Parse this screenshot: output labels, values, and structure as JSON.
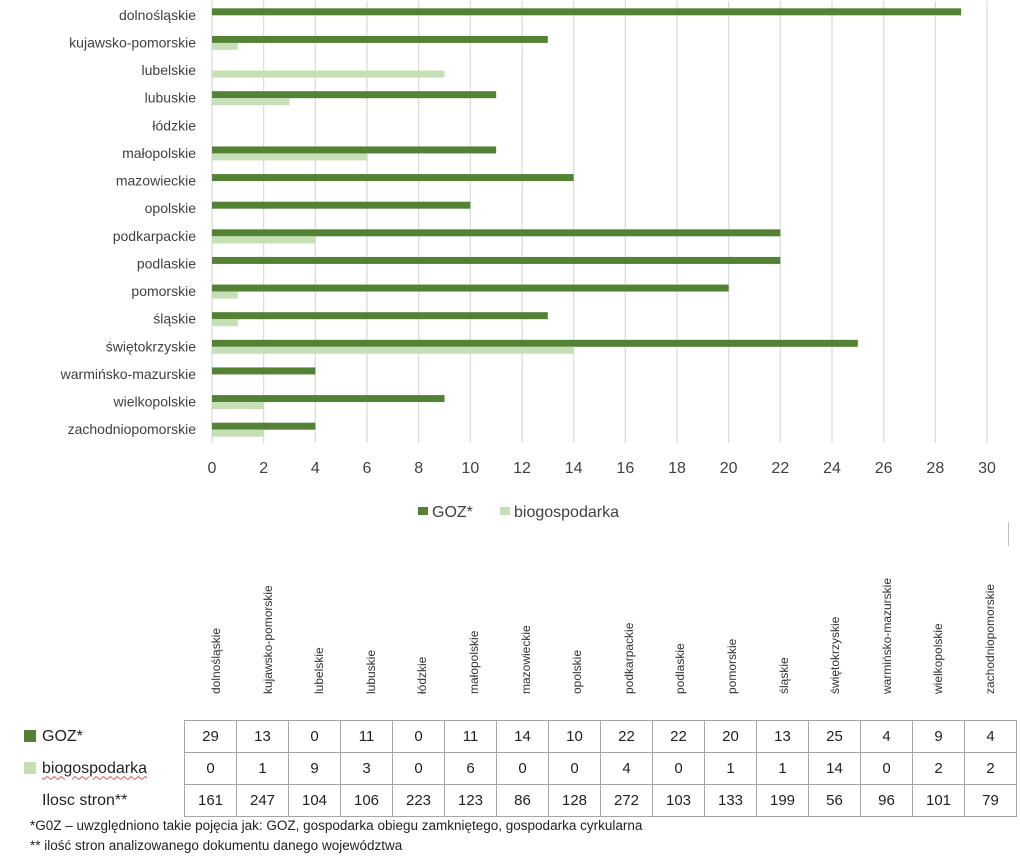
{
  "chart_data": {
    "type": "bar",
    "orientation": "horizontal",
    "categories": [
      "dolnośląskie",
      "kujawsko-pomorskie",
      "lubelskie",
      "lubuskie",
      "łódzkie",
      "małopolskie",
      "mazowieckie",
      "opolskie",
      "podkarpackie",
      "podlaskie",
      "pomorskie",
      "śląskie",
      "świętokrzyskie",
      "warmińsko-mazurskie",
      "wielkopolskie",
      "zachodniopomorskie"
    ],
    "series": [
      {
        "name": "GOZ*",
        "values": [
          29,
          13,
          0,
          11,
          0,
          11,
          14,
          10,
          22,
          22,
          20,
          13,
          25,
          4,
          9,
          4
        ],
        "color": "#548235"
      },
      {
        "name": "biogospodarka",
        "values": [
          0,
          1,
          9,
          3,
          0,
          6,
          0,
          0,
          4,
          0,
          1,
          1,
          14,
          0,
          2,
          2
        ],
        "color": "#c5e0b4"
      }
    ],
    "xlim": [
      0,
      30
    ],
    "xticks": [
      0,
      2,
      4,
      6,
      8,
      10,
      12,
      14,
      16,
      18,
      20,
      22,
      24,
      26,
      28,
      30
    ],
    "grid": true,
    "legend": "bottom"
  },
  "table": {
    "row_labels": [
      "GOZ*",
      "biogospodarka",
      "Ilosc stron**"
    ],
    "pages": [
      161,
      247,
      104,
      106,
      223,
      123,
      86,
      128,
      272,
      103,
      133,
      199,
      56,
      96,
      101,
      79
    ]
  },
  "notes": [
    "*G0Z – uwzględniono takie pojęcia jak: GOZ, gospodarka obiegu zamkniętego, gospodarka cyrkularna",
    "** ilość stron analizowanego dokumentu danego województwa"
  ]
}
